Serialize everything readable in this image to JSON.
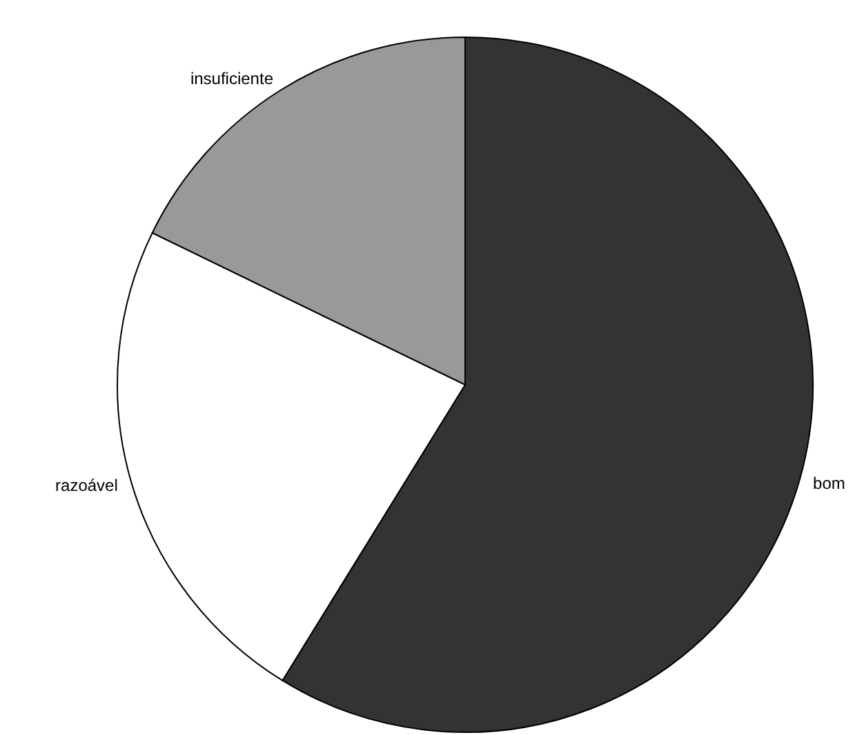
{
  "chart_data": {
    "type": "pie",
    "categories": [
      "bom",
      "razoável",
      "insuficiente"
    ],
    "values": [
      58.8,
      23.4,
      17.8
    ],
    "colors": [
      "#333333",
      "#ffffff",
      "#999999"
    ],
    "legend": false
  }
}
